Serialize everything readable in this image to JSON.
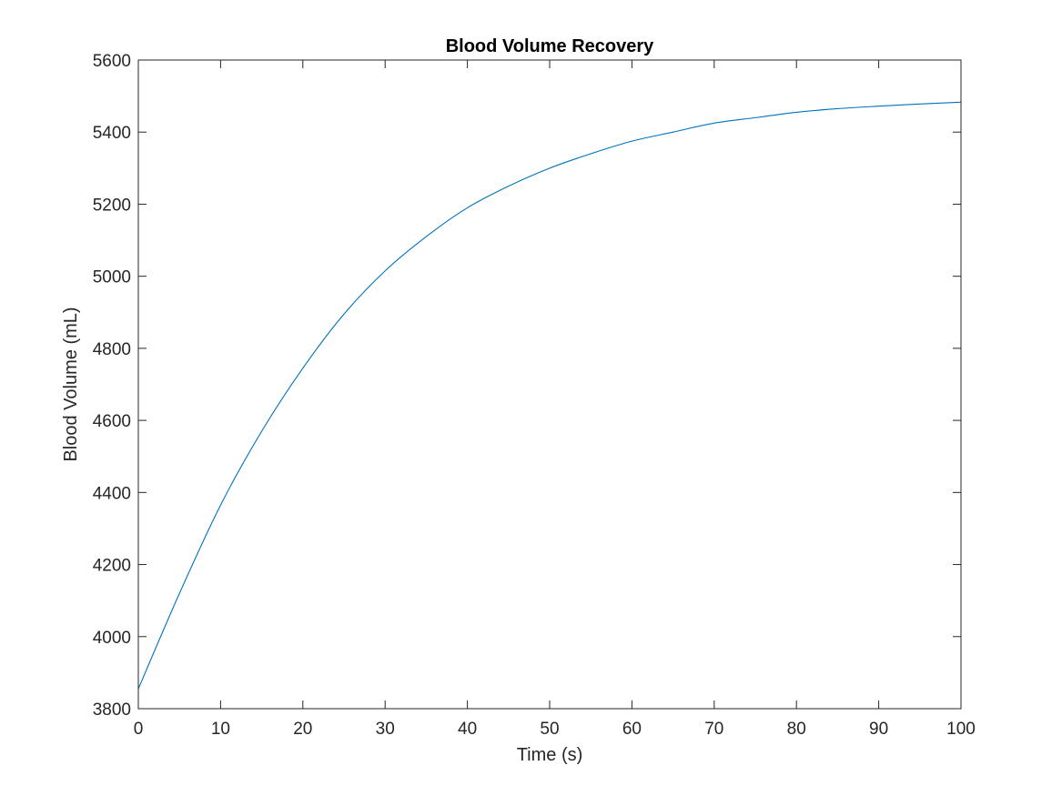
{
  "chart_data": {
    "type": "line",
    "title": "Blood Volume Recovery",
    "xlabel": "Time (s)",
    "ylabel": "Blood Volume (mL)",
    "xlim": [
      0,
      100
    ],
    "ylim": [
      3800,
      5600
    ],
    "xticks": [
      0,
      10,
      20,
      30,
      40,
      50,
      60,
      70,
      80,
      90,
      100
    ],
    "yticks": [
      3800,
      4000,
      4200,
      4400,
      4600,
      4800,
      5000,
      5200,
      5400,
      5600
    ],
    "grid": false,
    "box": true,
    "series": [
      {
        "color": "#0072BD",
        "x": [
          0,
          5,
          10,
          15,
          20,
          25,
          30,
          35,
          40,
          45,
          50,
          55,
          60,
          65,
          70,
          75,
          80,
          85,
          90,
          95,
          100
        ],
        "y": [
          3855,
          4120,
          4365,
          4570,
          4745,
          4895,
          5015,
          5110,
          5190,
          5250,
          5300,
          5340,
          5375,
          5400,
          5425,
          5440,
          5455,
          5465,
          5472,
          5478,
          5483
        ]
      }
    ]
  }
}
